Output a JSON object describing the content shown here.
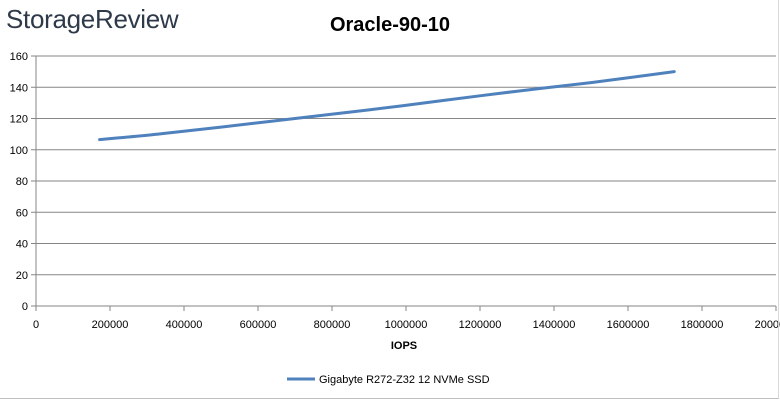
{
  "logo_text": "StorageReview",
  "chart_data": {
    "type": "line",
    "title": "Oracle-90-10",
    "xlabel": "IOPS",
    "ylabel": "",
    "xlim": [
      0,
      2000000
    ],
    "ylim": [
      0,
      160
    ],
    "xticks": [
      0,
      200000,
      400000,
      600000,
      800000,
      1000000,
      1200000,
      1400000,
      1600000,
      1800000,
      2000000
    ],
    "yticks": [
      0,
      20,
      40,
      60,
      80,
      100,
      120,
      140,
      160
    ],
    "grid": "horizontal",
    "legend_position": "bottom",
    "series": [
      {
        "name": "Gigabyte R272-Z32 12 NVMe SSD",
        "color": "#4f81bd",
        "points": [
          [
            172000,
            106.5
          ],
          [
            330000,
            110
          ],
          [
            500000,
            114.5
          ],
          [
            700000,
            120
          ],
          [
            900000,
            125.5
          ],
          [
            1100000,
            131.5
          ],
          [
            1300000,
            137.5
          ],
          [
            1500000,
            143
          ],
          [
            1725000,
            150
          ]
        ]
      }
    ]
  }
}
